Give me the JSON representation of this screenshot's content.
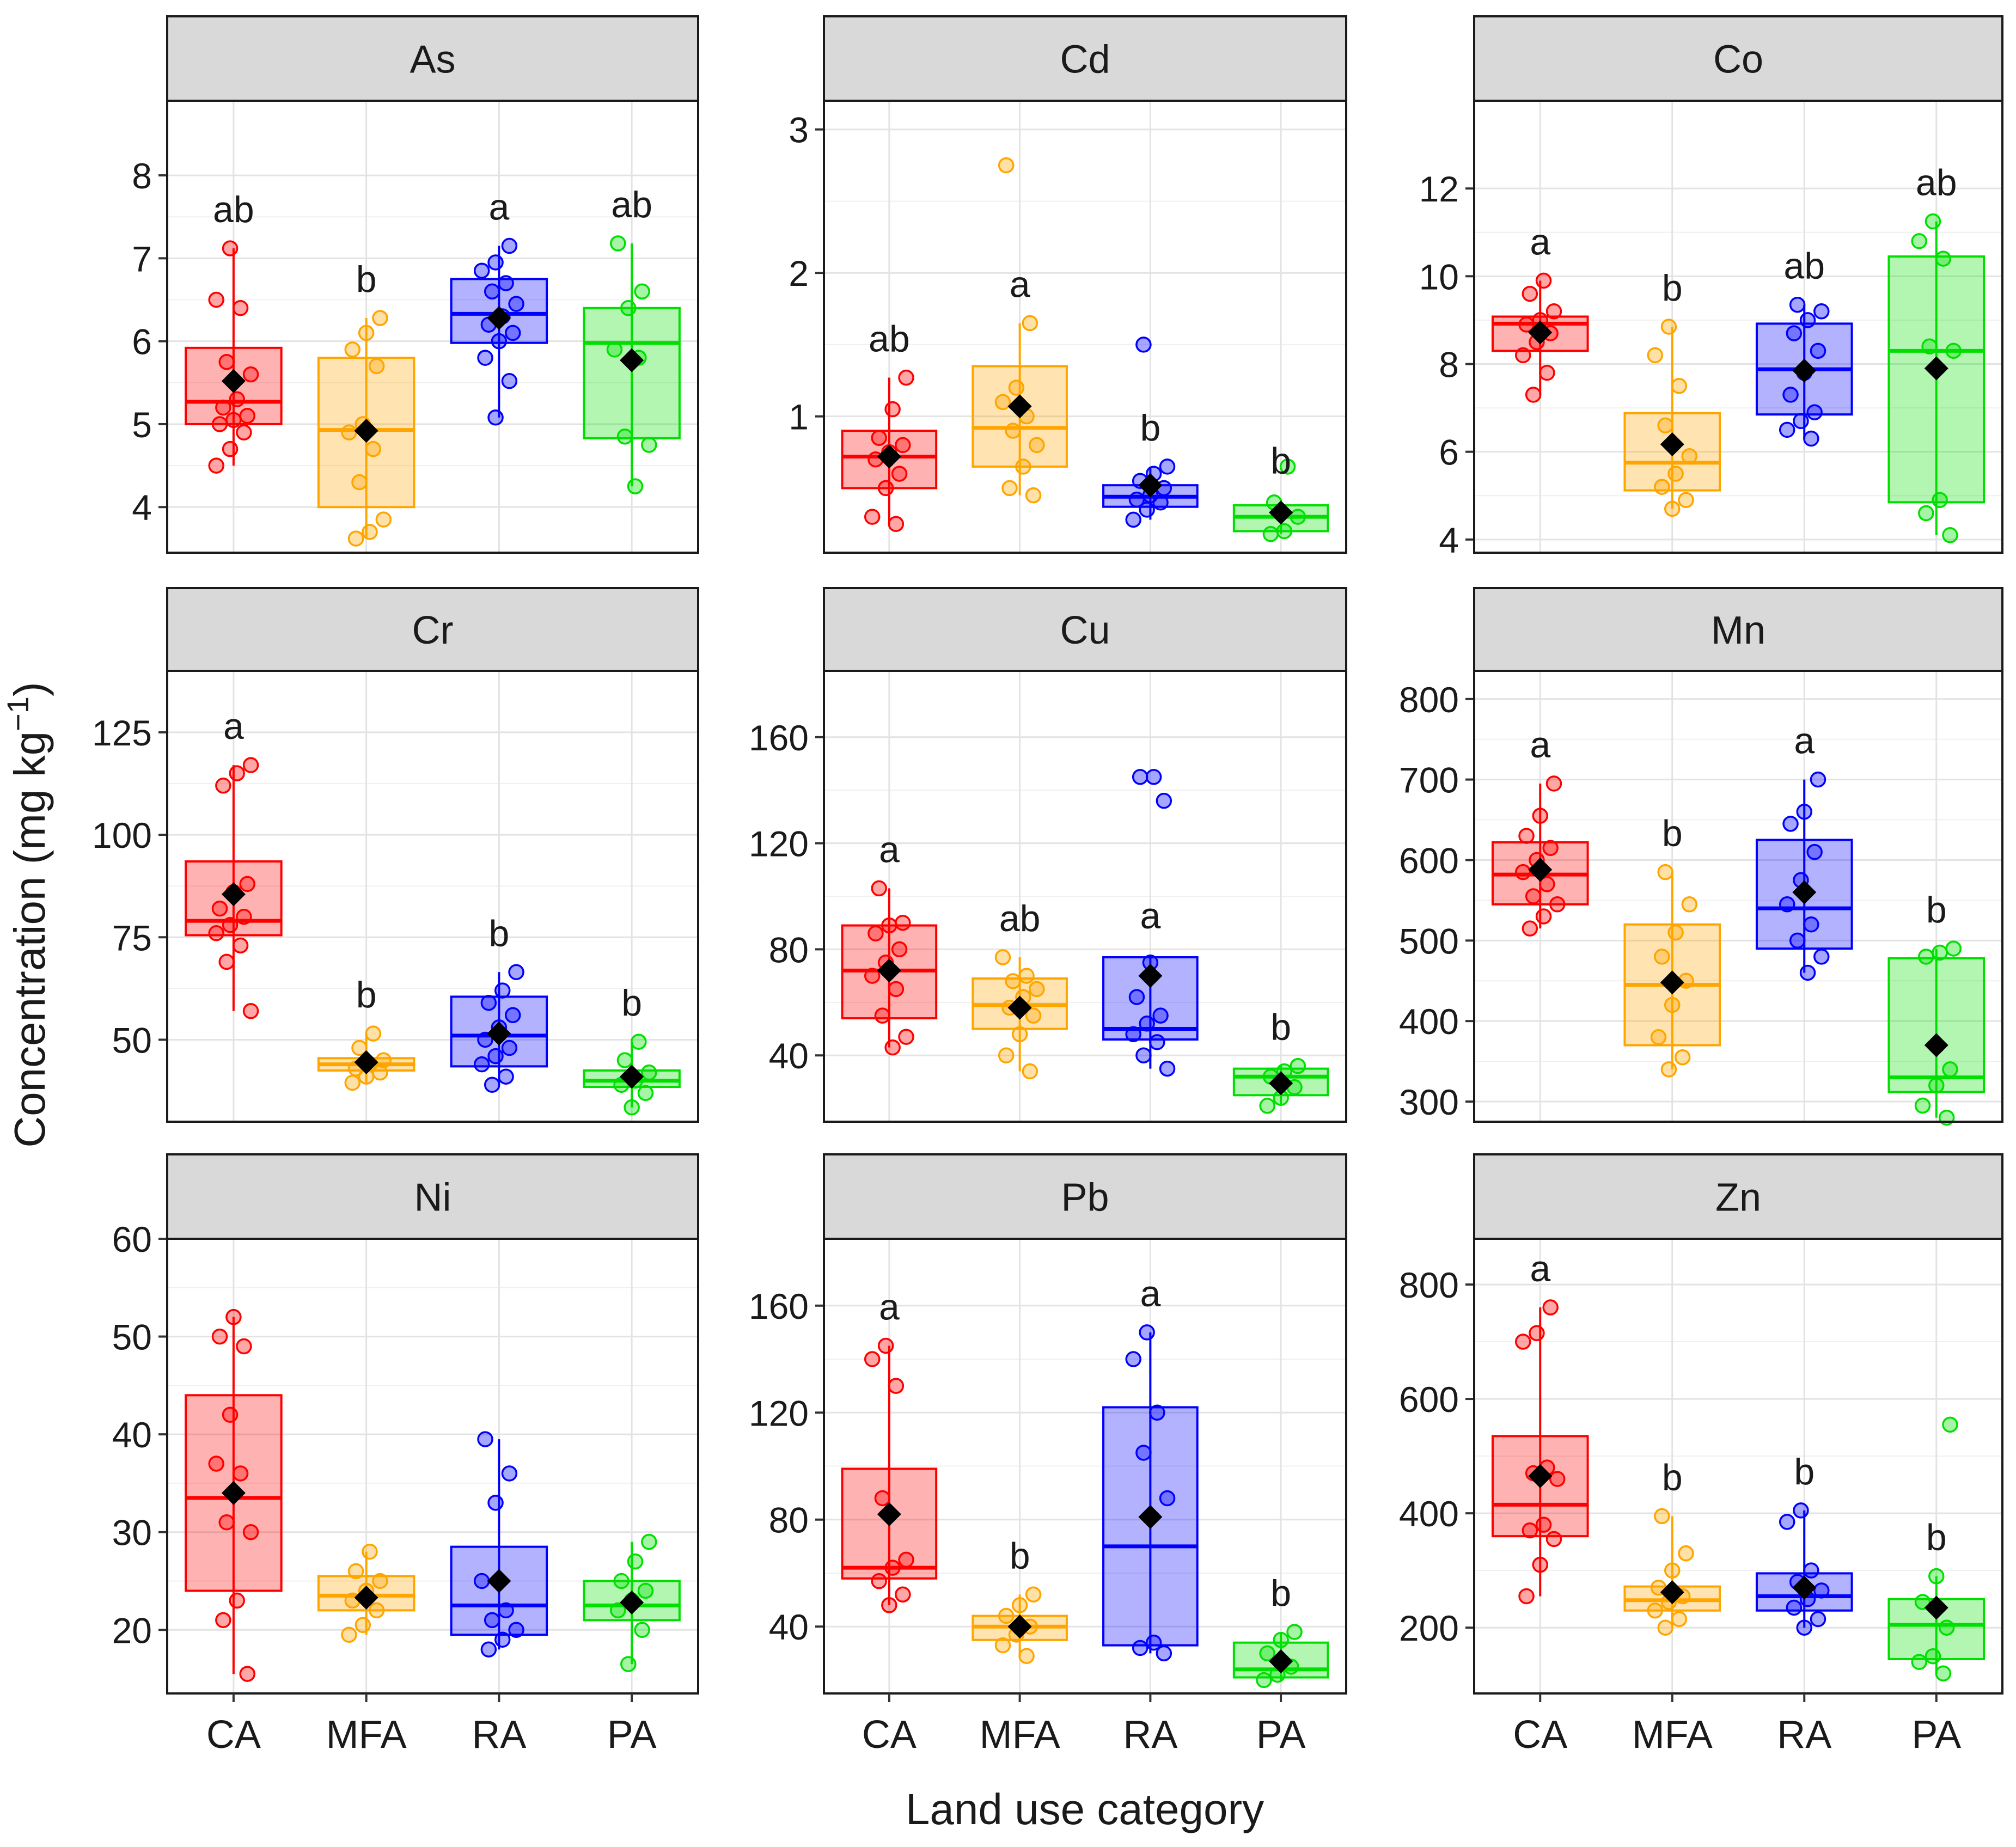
{
  "chart_data": {
    "type": "boxplot",
    "ylabel": "Concentration (mg kg",
    "ylabel_sup": "−1",
    "ylabel_close": ")",
    "xlabel": "Land use category",
    "categories": [
      "CA",
      "MFA",
      "RA",
      "PA"
    ],
    "colors": {
      "CA": "#ff0000",
      "MFA": "#ffa500",
      "RA": "#0000ff",
      "PA": "#00e000"
    },
    "panels": [
      {
        "title": "As",
        "ylim": [
          3.45,
          8.9
        ],
        "yticks": [
          4,
          5,
          6,
          7,
          8
        ],
        "groups": [
          {
            "cat": "CA",
            "q1": 5.0,
            "median": 5.27,
            "q3": 5.92,
            "lo": 4.5,
            "hi": 7.12,
            "mean": 5.52,
            "letter": "ab",
            "points": [
              4.5,
              4.7,
              4.9,
              5.0,
              5.05,
              5.1,
              5.2,
              5.3,
              5.6,
              5.75,
              6.4,
              6.5,
              7.12
            ]
          },
          {
            "cat": "MFA",
            "q1": 4.0,
            "median": 4.93,
            "q3": 5.8,
            "lo": 3.62,
            "hi": 6.28,
            "mean": 4.92,
            "letter": "b",
            "points": [
              3.62,
              3.7,
              3.85,
              4.3,
              4.7,
              4.9,
              5.0,
              5.7,
              5.9,
              6.1,
              6.28
            ]
          },
          {
            "cat": "RA",
            "q1": 5.98,
            "median": 6.33,
            "q3": 6.75,
            "lo": 5.08,
            "hi": 7.15,
            "mean": 6.28,
            "letter": "a",
            "points": [
              5.08,
              5.52,
              5.8,
              6.0,
              6.1,
              6.2,
              6.3,
              6.45,
              6.6,
              6.7,
              6.85,
              6.95,
              7.15
            ]
          },
          {
            "cat": "PA",
            "q1": 4.83,
            "median": 5.98,
            "q3": 6.4,
            "lo": 4.25,
            "hi": 7.18,
            "mean": 5.77,
            "letter": "ab",
            "points": [
              4.25,
              4.75,
              4.85,
              5.8,
              5.9,
              6.4,
              6.6,
              7.18
            ]
          }
        ]
      },
      {
        "title": "Cd",
        "ylim": [
          0.05,
          3.2
        ],
        "yticks": [
          1,
          2,
          3
        ],
        "groups": [
          {
            "cat": "CA",
            "q1": 0.5,
            "median": 0.72,
            "q3": 0.9,
            "lo": 0.25,
            "hi": 1.27,
            "mean": 0.72,
            "letter": "ab",
            "points": [
              0.25,
              0.3,
              0.5,
              0.6,
              0.7,
              0.75,
              0.8,
              0.85,
              1.05,
              1.27
            ]
          },
          {
            "cat": "MFA",
            "q1": 0.65,
            "median": 0.92,
            "q3": 1.35,
            "lo": 0.45,
            "hi": 1.65,
            "mean": 1.07,
            "letter": "a",
            "points": [
              0.45,
              0.5,
              0.65,
              0.8,
              0.9,
              1.0,
              1.1,
              1.2,
              1.65,
              2.75
            ]
          },
          {
            "cat": "RA",
            "q1": 0.37,
            "median": 0.44,
            "q3": 0.52,
            "lo": 0.28,
            "hi": 0.65,
            "mean": 0.52,
            "letter": "b",
            "points": [
              0.28,
              0.35,
              0.4,
              0.42,
              0.45,
              0.5,
              0.55,
              0.6,
              0.65,
              1.5
            ]
          },
          {
            "cat": "PA",
            "q1": 0.2,
            "median": 0.3,
            "q3": 0.38,
            "lo": 0.18,
            "hi": 0.42,
            "mean": 0.33,
            "letter": "b",
            "points": [
              0.18,
              0.2,
              0.3,
              0.4,
              0.65
            ]
          }
        ]
      },
      {
        "title": "Co",
        "ylim": [
          3.7,
          14.0
        ],
        "yticks": [
          4,
          6,
          8,
          10,
          12
        ],
        "groups": [
          {
            "cat": "CA",
            "q1": 8.3,
            "median": 8.92,
            "q3": 9.08,
            "lo": 7.3,
            "hi": 9.9,
            "mean": 8.72,
            "letter": "a",
            "points": [
              7.3,
              7.8,
              8.2,
              8.5,
              8.7,
              8.9,
              9.0,
              9.2,
              9.6,
              9.9
            ]
          },
          {
            "cat": "MFA",
            "q1": 5.12,
            "median": 5.75,
            "q3": 6.88,
            "lo": 4.7,
            "hi": 8.85,
            "mean": 6.17,
            "letter": "b",
            "points": [
              4.7,
              4.9,
              5.2,
              5.5,
              5.9,
              6.6,
              7.5,
              8.2,
              8.85
            ]
          },
          {
            "cat": "RA",
            "q1": 6.85,
            "median": 7.88,
            "q3": 8.92,
            "lo": 6.3,
            "hi": 9.35,
            "mean": 7.85,
            "letter": "ab",
            "points": [
              6.3,
              6.5,
              6.7,
              6.9,
              7.3,
              7.8,
              8.3,
              8.7,
              9.0,
              9.2,
              9.35
            ]
          },
          {
            "cat": "PA",
            "q1": 4.85,
            "median": 8.3,
            "q3": 10.45,
            "lo": 4.1,
            "hi": 11.25,
            "mean": 7.9,
            "letter": "ab",
            "points": [
              4.1,
              4.6,
              4.9,
              8.3,
              8.4,
              10.4,
              10.8,
              11.25
            ]
          }
        ]
      },
      {
        "title": "Cr",
        "ylim": [
          30,
          140
        ],
        "yticks": [
          50,
          75,
          100,
          125
        ],
        "groups": [
          {
            "cat": "CA",
            "q1": 75.5,
            "median": 79.0,
            "q3": 93.5,
            "lo": 57.0,
            "hi": 117.0,
            "mean": 85.5,
            "letter": "a",
            "points": [
              57,
              69,
              73,
              76,
              78,
              80,
              82,
              86,
              88,
              112,
              115,
              117
            ]
          },
          {
            "cat": "MFA",
            "q1": 42.5,
            "median": 44.0,
            "q3": 45.5,
            "lo": 39.5,
            "hi": 51.5,
            "mean": 44.5,
            "letter": "b",
            "points": [
              39.5,
              41,
              42,
              43,
              44,
              45,
              48,
              51.5
            ]
          },
          {
            "cat": "RA",
            "q1": 43.5,
            "median": 51.0,
            "q3": 60.5,
            "lo": 39.0,
            "hi": 66.5,
            "mean": 51.5,
            "letter": "b",
            "points": [
              39,
              41,
              44,
              46,
              48,
              50,
              53,
              56,
              59,
              62,
              66.5
            ]
          },
          {
            "cat": "PA",
            "q1": 38.5,
            "median": 40.0,
            "q3": 42.5,
            "lo": 33.5,
            "hi": 49.5,
            "mean": 41.0,
            "letter": "b",
            "points": [
              33.5,
              37,
              39,
              40,
              42,
              45,
              49.5
            ]
          }
        ]
      },
      {
        "title": "Cu",
        "ylim": [
          15,
          185
        ],
        "yticks": [
          40,
          80,
          120,
          160
        ],
        "groups": [
          {
            "cat": "CA",
            "q1": 54.0,
            "median": 72.0,
            "q3": 89.0,
            "lo": 43.0,
            "hi": 103.0,
            "mean": 72.0,
            "letter": "a",
            "points": [
              43,
              47,
              55,
              65,
              70,
              75,
              80,
              86,
              89,
              90,
              103
            ]
          },
          {
            "cat": "MFA",
            "q1": 50.0,
            "median": 59.0,
            "q3": 69.0,
            "lo": 34.0,
            "hi": 77.0,
            "mean": 58.0,
            "letter": "ab",
            "points": [
              34,
              40,
              48,
              55,
              58,
              62,
              65,
              68,
              70,
              77
            ]
          },
          {
            "cat": "RA",
            "q1": 46.0,
            "median": 50.0,
            "q3": 77.0,
            "lo": 35.0,
            "hi": 78.0,
            "mean": 70.0,
            "letter": "a",
            "points": [
              35,
              40,
              45,
              48,
              52,
              55,
              62,
              75,
              136,
              145,
              145
            ]
          },
          {
            "cat": "PA",
            "q1": 25.0,
            "median": 32.0,
            "q3": 35.0,
            "lo": 21.0,
            "hi": 36.0,
            "mean": 29.5,
            "letter": "b",
            "points": [
              21,
              24,
              28,
              32,
              34,
              36
            ]
          }
        ]
      },
      {
        "title": "Mn",
        "ylim": [
          275,
          835
        ],
        "yticks": [
          300,
          400,
          500,
          600,
          700,
          800
        ],
        "groups": [
          {
            "cat": "CA",
            "q1": 545.0,
            "median": 582.0,
            "q3": 622.0,
            "lo": 515.0,
            "hi": 695.0,
            "mean": 588.0,
            "letter": "a",
            "points": [
              515,
              530,
              545,
              555,
              570,
              585,
              600,
              615,
              630,
              655,
              695
            ]
          },
          {
            "cat": "MFA",
            "q1": 370.0,
            "median": 445.0,
            "q3": 520.0,
            "lo": 340.0,
            "hi": 585.0,
            "mean": 448.0,
            "letter": "b",
            "points": [
              340,
              355,
              380,
              420,
              450,
              480,
              510,
              545,
              585
            ]
          },
          {
            "cat": "RA",
            "q1": 490.0,
            "median": 540.0,
            "q3": 625.0,
            "lo": 460.0,
            "hi": 700.0,
            "mean": 560.0,
            "letter": "a",
            "points": [
              460,
              480,
              500,
              520,
              545,
              575,
              610,
              645,
              660,
              700
            ]
          },
          {
            "cat": "PA",
            "q1": 312.0,
            "median": 330.0,
            "q3": 478.0,
            "lo": 280.0,
            "hi": 490.0,
            "mean": 370.0,
            "letter": "b",
            "points": [
              280,
              295,
              320,
              340,
              480,
              485,
              490
            ]
          }
        ]
      },
      {
        "title": "Ni",
        "ylim": [
          13.5,
          60
        ],
        "yticks": [
          20,
          30,
          40,
          50,
          60
        ],
        "groups": [
          {
            "cat": "CA",
            "q1": 24.0,
            "median": 33.5,
            "q3": 44.0,
            "lo": 15.5,
            "hi": 52.0,
            "mean": 34.0,
            "letter": "",
            "points": [
              15.5,
              21,
              23,
              30,
              31,
              36,
              37,
              42,
              49,
              50,
              52
            ]
          },
          {
            "cat": "MFA",
            "q1": 22.0,
            "median": 23.5,
            "q3": 25.5,
            "lo": 19.5,
            "hi": 28.0,
            "mean": 23.3,
            "letter": "",
            "points": [
              19.5,
              20.5,
              22,
              23,
              24,
              25,
              26,
              28
            ]
          },
          {
            "cat": "RA",
            "q1": 19.5,
            "median": 22.5,
            "q3": 28.5,
            "lo": 18.0,
            "hi": 39.5,
            "mean": 25.0,
            "letter": "",
            "points": [
              18,
              19,
              20,
              21,
              22,
              25,
              33,
              36,
              39.5
            ]
          },
          {
            "cat": "PA",
            "q1": 21.0,
            "median": 22.5,
            "q3": 25.0,
            "lo": 16.5,
            "hi": 29.0,
            "mean": 22.8,
            "letter": "",
            "points": [
              16.5,
              20,
              22,
              23,
              24,
              25,
              27,
              29
            ]
          }
        ]
      },
      {
        "title": "Pb",
        "ylim": [
          15,
          185
        ],
        "yticks": [
          40,
          80,
          120,
          160
        ],
        "groups": [
          {
            "cat": "CA",
            "q1": 58.0,
            "median": 62.0,
            "q3": 99.0,
            "lo": 48.0,
            "hi": 145.0,
            "mean": 82.0,
            "letter": "a",
            "points": [
              48,
              52,
              57,
              62,
              65,
              88,
              130,
              140,
              145
            ]
          },
          {
            "cat": "MFA",
            "q1": 35.0,
            "median": 40.0,
            "q3": 44.0,
            "lo": 29.0,
            "hi": 52.0,
            "mean": 40.0,
            "letter": "b",
            "points": [
              29,
              33,
              37,
              40,
              44,
              48,
              52
            ]
          },
          {
            "cat": "RA",
            "q1": 33.0,
            "median": 70.0,
            "q3": 122.0,
            "lo": 30.0,
            "hi": 150.0,
            "mean": 81.0,
            "letter": "a",
            "points": [
              30,
              32,
              34,
              88,
              105,
              120,
              140,
              150
            ]
          },
          {
            "cat": "PA",
            "q1": 21.0,
            "median": 24.0,
            "q3": 34.0,
            "lo": 20.0,
            "hi": 38.0,
            "mean": 27.0,
            "letter": "b",
            "points": [
              20,
              22,
              25,
              30,
              35,
              38
            ]
          }
        ]
      },
      {
        "title": "Zn",
        "ylim": [
          85,
          880
        ],
        "yticks": [
          200,
          400,
          600,
          800
        ],
        "groups": [
          {
            "cat": "CA",
            "q1": 360.0,
            "median": 415.0,
            "q3": 535.0,
            "lo": 255.0,
            "hi": 760.0,
            "mean": 465.0,
            "letter": "a",
            "points": [
              255,
              310,
              355,
              370,
              380,
              460,
              470,
              480,
              700,
              715,
              760
            ]
          },
          {
            "cat": "MFA",
            "q1": 230.0,
            "median": 248.0,
            "q3": 272.0,
            "lo": 200.0,
            "hi": 395.0,
            "mean": 262.0,
            "letter": "b",
            "points": [
              200,
              215,
              230,
              245,
              255,
              270,
              300,
              330,
              395
            ]
          },
          {
            "cat": "RA",
            "q1": 230.0,
            "median": 255.0,
            "q3": 295.0,
            "lo": 200.0,
            "hi": 405.0,
            "mean": 270.0,
            "letter": "b",
            "points": [
              200,
              215,
              235,
              250,
              265,
              280,
              300,
              385,
              405
            ]
          },
          {
            "cat": "PA",
            "q1": 145.0,
            "median": 205.0,
            "q3": 250.0,
            "lo": 120.0,
            "hi": 290.0,
            "mean": 235.0,
            "letter": "b",
            "points": [
              120,
              140,
              150,
              200,
              245,
              290,
              555
            ]
          }
        ]
      }
    ]
  }
}
